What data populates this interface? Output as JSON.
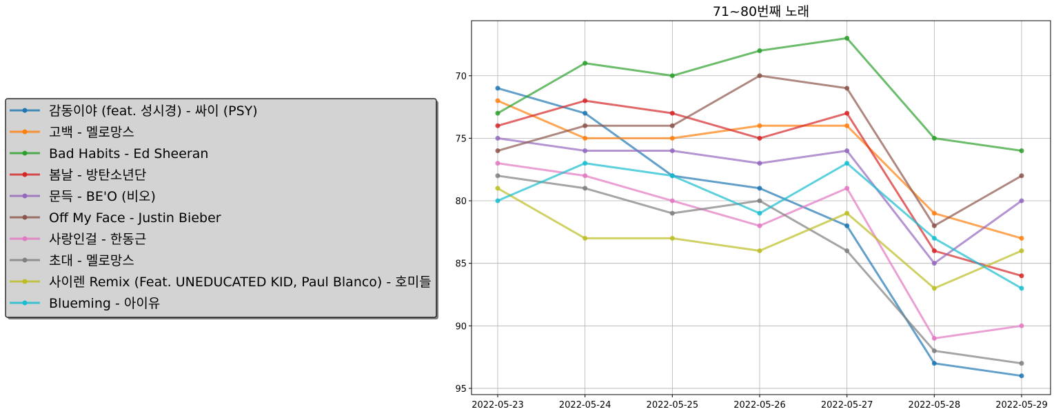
{
  "chart_data": {
    "type": "line",
    "title": "71~80번째 노래",
    "xlabel": "",
    "ylabel": "",
    "x": [
      "2022-05-23",
      "2022-05-24",
      "2022-05-25",
      "2022-05-26",
      "2022-05-27",
      "2022-05-28",
      "2022-05-29"
    ],
    "y_inverted": true,
    "ylim": [
      95.5,
      65.6
    ],
    "yticks": [
      70,
      75,
      80,
      85,
      90,
      95
    ],
    "grid": true,
    "legend_placement": "left, outside plot",
    "series": [
      {
        "name": "감동이야 (feat. 성시경) - 싸이 (PSY)",
        "color": "#1f77b4",
        "values": [
          71,
          73,
          78,
          79,
          82,
          93,
          94
        ]
      },
      {
        "name": "고백 - 멜로망스",
        "color": "#ff7f0e",
        "values": [
          72,
          75,
          75,
          74,
          74,
          81,
          83
        ]
      },
      {
        "name": "Bad Habits - Ed Sheeran",
        "color": "#2ca02c",
        "values": [
          73,
          69,
          70,
          68,
          67,
          75,
          76
        ]
      },
      {
        "name": "봄날 - 방탄소년단",
        "color": "#d62728",
        "values": [
          74,
          72,
          73,
          75,
          73,
          84,
          86
        ]
      },
      {
        "name": "문득 - BE'O (비오)",
        "color": "#9467bd",
        "values": [
          75,
          76,
          76,
          77,
          76,
          85,
          80
        ]
      },
      {
        "name": "Off My Face - Justin Bieber",
        "color": "#8c564b",
        "values": [
          76,
          74,
          74,
          70,
          71,
          82,
          78
        ]
      },
      {
        "name": "사랑인걸 - 한동근",
        "color": "#e377c2",
        "values": [
          77,
          78,
          80,
          82,
          79,
          91,
          90
        ]
      },
      {
        "name": "초대 - 멜로망스",
        "color": "#7f7f7f",
        "values": [
          78,
          79,
          81,
          80,
          84,
          92,
          93
        ]
      },
      {
        "name": "사이렌 Remix (Feat. UNEDUCATED KID, Paul Blanco) - 호미들",
        "color": "#bcbd22",
        "values": [
          79,
          83,
          83,
          84,
          81,
          87,
          84
        ]
      },
      {
        "name": "Blueming - 아이유",
        "color": "#17becf",
        "values": [
          80,
          77,
          78,
          81,
          77,
          83,
          87
        ]
      }
    ]
  }
}
